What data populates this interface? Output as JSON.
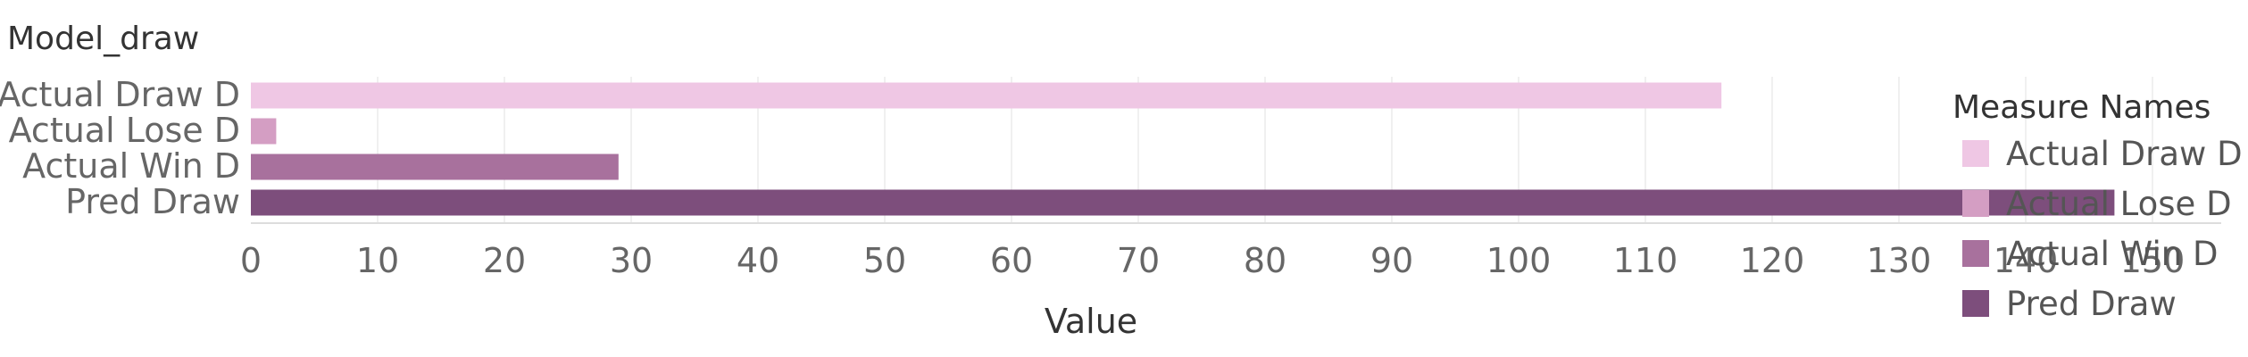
{
  "sheet_title": "Model_draw",
  "legend": {
    "title": "Measure Names",
    "items": [
      {
        "label": "Actual Draw D",
        "color": "#EFC7E4"
      },
      {
        "label": "Actual Lose D",
        "color": "#D49EC3"
      },
      {
        "label": "Actual Win D",
        "color": "#A8719D"
      },
      {
        "label": "Pred Draw",
        "color": "#7D4E7C"
      }
    ]
  },
  "chart_data": {
    "type": "bar",
    "orientation": "horizontal",
    "categories": [
      "Actual Draw D",
      "Actual Lose D",
      "Actual Win D",
      "Pred Draw"
    ],
    "values": [
      116,
      2,
      29,
      147
    ],
    "colors": [
      "#EFC7E4",
      "#D49EC3",
      "#A8719D",
      "#7D4E7C"
    ],
    "xlabel": "Value",
    "ylabel": "",
    "xlim": [
      0,
      155
    ],
    "xticks": [
      0,
      10,
      20,
      30,
      40,
      50,
      60,
      70,
      80,
      90,
      100,
      110,
      120,
      130,
      140,
      150
    ],
    "grid": true,
    "legend_position": "right"
  }
}
